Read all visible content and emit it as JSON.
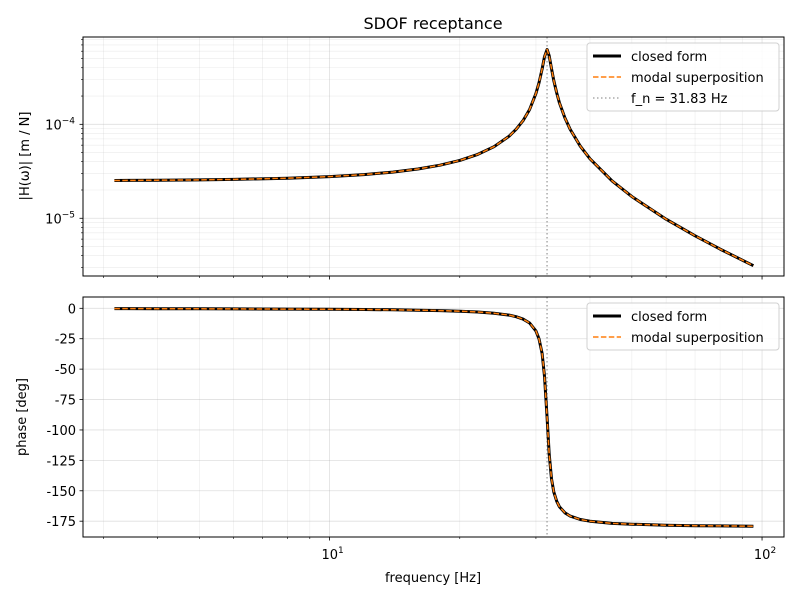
{
  "chart_data": [
    {
      "type": "line",
      "title": "SDOF receptance",
      "ylabel": "|H(ω)|  [m / N]",
      "xlabel": "",
      "xscale": "log",
      "yscale": "log",
      "xlim": [
        2.69,
        112.4
      ],
      "ylim": [
        2.43e-06,
        0.00085
      ],
      "grid": "major and minor",
      "legend_placement": "upper right",
      "y_ticks": [
        {
          "value": 0.0001,
          "base": "10",
          "exp": "−4"
        },
        {
          "value": 1e-05,
          "base": "10",
          "exp": "−5"
        }
      ],
      "x": [
        3.18,
        4,
        5,
        6,
        8,
        10,
        12,
        14,
        16,
        18,
        20,
        22,
        24,
        26,
        27,
        28,
        29,
        30,
        30.5,
        31,
        31.4,
        31.83,
        32.2,
        32.6,
        33,
        33.5,
        34,
        35,
        36,
        38,
        40,
        45,
        50,
        60,
        70,
        80,
        95.5
      ],
      "series": [
        {
          "name": "closed form",
          "color": "#000000",
          "style": "solid",
          "values": [
            2.525e-05,
            2.54e-05,
            2.563e-05,
            2.592e-05,
            2.669e-05,
            2.774e-05,
            2.914e-05,
            3.099e-05,
            3.345e-05,
            3.673e-05,
            4.127e-05,
            4.78e-05,
            5.78e-05,
            7.476e-05,
            8.852e-05,
            0.0001093,
            0.0001439,
            0.0002121,
            0.0002767,
            0.0003871,
            0.0005241,
            0.000625,
            0.0005349,
            0.0003914,
            0.000292,
            0.0002162,
            0.0001697,
            0.000117,
            8.84e-05,
            5.843e-05,
            4.299e-05,
            2.499e-05,
            1.702e-05,
            9.787e-06,
            6.515e-06,
            4.701e-06,
            3.124e-06
          ]
        },
        {
          "name": "modal superposition",
          "color": "#ff7f0e",
          "style": "dashed",
          "values": [
            2.525e-05,
            2.54e-05,
            2.563e-05,
            2.592e-05,
            2.669e-05,
            2.774e-05,
            2.914e-05,
            3.099e-05,
            3.345e-05,
            3.673e-05,
            4.127e-05,
            4.78e-05,
            5.78e-05,
            7.476e-05,
            8.852e-05,
            0.0001093,
            0.0001439,
            0.0002121,
            0.0002767,
            0.0003871,
            0.0005241,
            0.000625,
            0.0005349,
            0.0003914,
            0.000292,
            0.0002162,
            0.0001697,
            0.000117,
            8.84e-05,
            5.843e-05,
            4.299e-05,
            2.499e-05,
            1.702e-05,
            9.787e-06,
            6.515e-06,
            4.701e-06,
            3.124e-06
          ]
        }
      ],
      "vline": {
        "x": 31.83,
        "label": "f_n = 31.83 Hz",
        "color": "#aaaaaa",
        "style": "dotted"
      }
    },
    {
      "type": "line",
      "title": "",
      "ylabel": "phase [deg]",
      "xlabel": "frequency [Hz]",
      "xscale": "log",
      "yscale": "linear",
      "xlim": [
        2.69,
        112.4
      ],
      "ylim": [
        -188,
        9.3
      ],
      "grid": "major and minor",
      "legend_placement": "upper right",
      "y_ticks": [
        "0",
        "-25",
        "-50",
        "-75",
        "-100",
        "-125",
        "-150",
        "-175"
      ],
      "x_ticks": [
        {
          "value": 10,
          "base": "10",
          "exp": "1"
        },
        {
          "value": 100,
          "base": "10",
          "exp": "2"
        }
      ],
      "x": [
        3.18,
        4,
        5,
        6,
        8,
        10,
        12,
        14,
        16,
        18,
        20,
        22,
        24,
        26,
        27,
        28,
        29,
        30,
        30.5,
        31,
        31.4,
        31.83,
        32.2,
        32.6,
        33,
        33.5,
        34,
        35,
        36,
        38,
        40,
        45,
        50,
        60,
        70,
        80,
        95.5
      ],
      "series": [
        {
          "name": "closed form",
          "color": "#000000",
          "style": "solid",
          "values": [
            -0.23,
            -0.29,
            -0.37,
            -0.45,
            -0.61,
            -0.8,
            -1.01,
            -1.25,
            -1.54,
            -1.9,
            -2.38,
            -3.03,
            -4.0,
            -5.61,
            -6.9,
            -8.85,
            -12.1,
            -18.6,
            -25.1,
            -37.1,
            -55.8,
            -90.0,
            -120.0,
            -140.1,
            -151.0,
            -158.6,
            -163.1,
            -168.1,
            -170.8,
            -173.6,
            -175.0,
            -176.8,
            -177.5,
            -178.3,
            -178.7,
            -178.9,
            -179.1
          ]
        },
        {
          "name": "modal superposition",
          "color": "#ff7f0e",
          "style": "dashed",
          "values": [
            -0.23,
            -0.29,
            -0.37,
            -0.45,
            -0.61,
            -0.8,
            -1.01,
            -1.25,
            -1.54,
            -1.9,
            -2.38,
            -3.03,
            -4.0,
            -5.61,
            -6.9,
            -8.85,
            -12.1,
            -18.6,
            -25.1,
            -37.1,
            -55.8,
            -90.0,
            -120.0,
            -140.1,
            -151.0,
            -158.6,
            -163.1,
            -168.1,
            -170.8,
            -173.6,
            -175.0,
            -176.8,
            -177.5,
            -178.3,
            -178.7,
            -178.9,
            -179.1
          ]
        }
      ],
      "vline": {
        "x": 31.83,
        "color": "#aaaaaa",
        "style": "dotted"
      }
    }
  ]
}
